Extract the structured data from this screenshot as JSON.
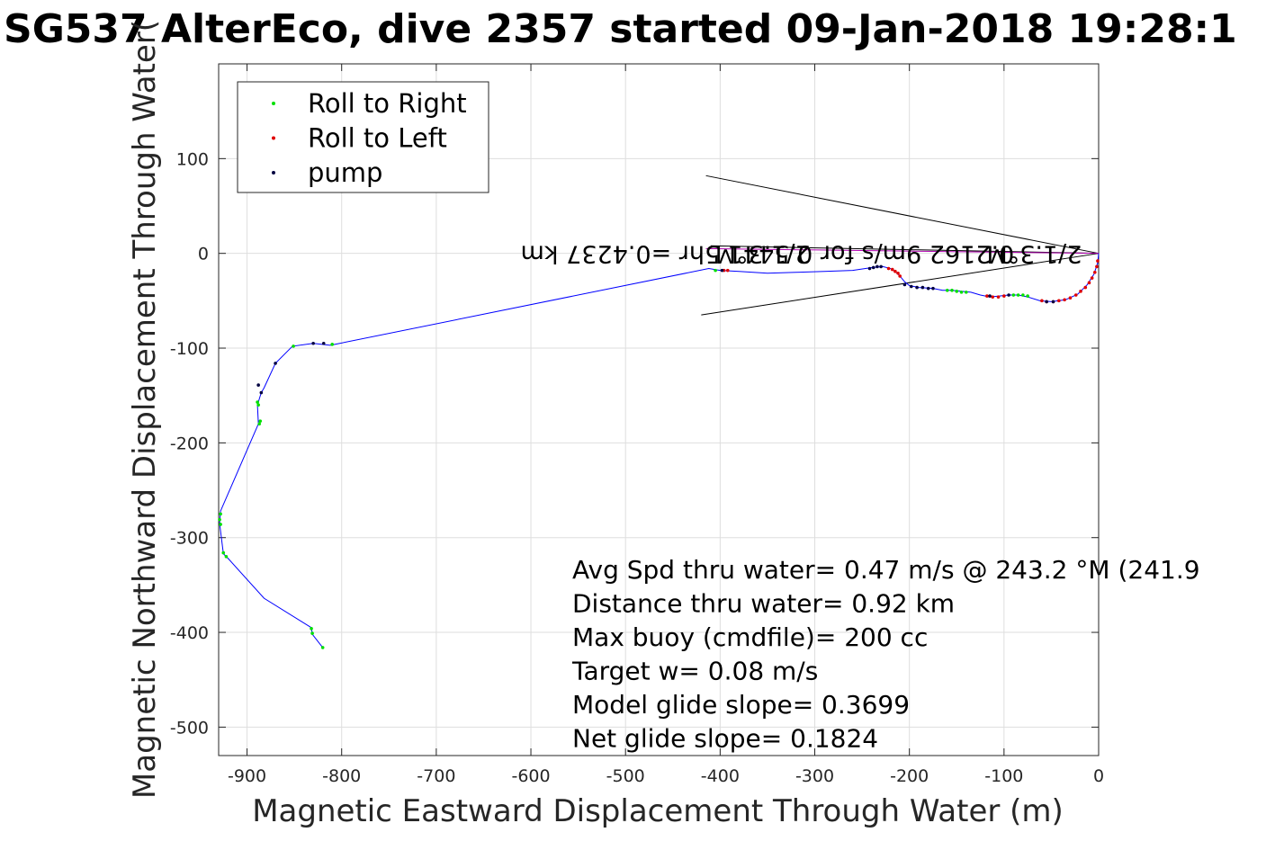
{
  "chart_data": {
    "type": "scatter",
    "title": "SG537 AlterEco, dive 2357 started 09-Jan-2018 19:28:1",
    "xlabel": "Magnetic Eastward Displacement Through Water (m)",
    "ylabel": "Magnetic Northward Displacement Through Water(",
    "xlim": [
      -930,
      0
    ],
    "ylim": [
      -530,
      200
    ],
    "xticks": [
      -900,
      -800,
      -700,
      -600,
      -500,
      -400,
      -300,
      -200,
      -100,
      0
    ],
    "yticks": [
      -500,
      -400,
      -300,
      -200,
      -100,
      0,
      100
    ],
    "grid": true,
    "legend": {
      "placement": "top-left",
      "entries": [
        {
          "label": "Roll to Right",
          "color": "#00e000"
        },
        {
          "label": "Roll to Left",
          "color": "#e00000"
        },
        {
          "label": "pump",
          "color": "#000040"
        }
      ]
    },
    "track": {
      "color": "#0000ff",
      "points": [
        [
          0,
          0
        ],
        [
          -1,
          -10
        ],
        [
          -5,
          -22
        ],
        [
          -12,
          -33
        ],
        [
          -22,
          -43
        ],
        [
          -35,
          -49
        ],
        [
          -50,
          -51
        ],
        [
          -62,
          -50
        ],
        [
          -75,
          -46
        ],
        [
          -85,
          -44
        ],
        [
          -95,
          -44
        ],
        [
          -105,
          -45
        ],
        [
          -115,
          -46
        ],
        [
          -125,
          -44
        ],
        [
          -135,
          -41
        ],
        [
          -145,
          -40
        ],
        [
          -155,
          -39
        ],
        [
          -165,
          -39
        ],
        [
          -175,
          -37
        ],
        [
          -190,
          -36
        ],
        [
          -200,
          -34
        ],
        [
          -205,
          -30
        ],
        [
          -210,
          -24
        ],
        [
          -215,
          -19
        ],
        [
          -220,
          -16
        ],
        [
          -228,
          -14
        ],
        [
          -240,
          -15
        ],
        [
          -260,
          -18
        ],
        [
          -290,
          -19
        ],
        [
          -320,
          -20
        ],
        [
          -350,
          -21
        ],
        [
          -380,
          -19
        ],
        [
          -400,
          -18
        ],
        [
          -412,
          -16
        ],
        [
          -812,
          -97
        ],
        [
          -830,
          -95
        ],
        [
          -852,
          -98
        ],
        [
          -870,
          -116
        ],
        [
          -882,
          -142
        ],
        [
          -885,
          -147
        ],
        [
          -889,
          -160
        ],
        [
          -888,
          -180
        ],
        [
          -928,
          -272
        ],
        [
          -929,
          -285
        ],
        [
          -925,
          -317
        ],
        [
          -920,
          -322
        ],
        [
          -882,
          -364
        ],
        [
          -832,
          -395
        ],
        [
          -831,
          -402
        ],
        [
          -820,
          -416
        ]
      ]
    },
    "series": [
      {
        "name": "Roll to Right",
        "color": "#00e000",
        "points": [
          [
            -160,
            -39
          ],
          [
            -155,
            -39
          ],
          [
            -150,
            -40
          ],
          [
            -145,
            -41
          ],
          [
            -140,
            -41
          ],
          [
            -90,
            -44
          ],
          [
            -85,
            -44
          ],
          [
            -80,
            -44
          ],
          [
            -75,
            -45
          ],
          [
            -888,
            -160
          ],
          [
            -889,
            -157
          ],
          [
            -886,
            -177
          ],
          [
            -887,
            -180
          ],
          [
            -928,
            -275
          ],
          [
            -929,
            -281
          ],
          [
            -928,
            -286
          ],
          [
            -925,
            -316
          ],
          [
            -922,
            -320
          ],
          [
            -832,
            -396
          ],
          [
            -831,
            -401
          ],
          [
            -820,
            -416
          ],
          [
            -851,
            -98
          ],
          [
            -810,
            -96
          ],
          [
            -405,
            -18
          ]
        ]
      },
      {
        "name": "Roll to Left",
        "color": "#e00000",
        "points": [
          [
            -1,
            -8
          ],
          [
            -2,
            -14
          ],
          [
            -4,
            -20
          ],
          [
            -7,
            -26
          ],
          [
            -10,
            -31
          ],
          [
            -14,
            -36
          ],
          [
            -19,
            -40
          ],
          [
            -24,
            -44
          ],
          [
            -30,
            -47
          ],
          [
            -36,
            -49
          ],
          [
            -42,
            -50
          ],
          [
            -48,
            -51
          ],
          [
            -55,
            -51
          ],
          [
            -60,
            -50
          ],
          [
            -118,
            -45
          ],
          [
            -112,
            -46
          ],
          [
            -106,
            -46
          ],
          [
            -100,
            -45
          ],
          [
            -210,
            -24
          ],
          [
            -212,
            -21
          ],
          [
            -215,
            -19
          ],
          [
            -218,
            -17
          ],
          [
            -222,
            -16
          ],
          [
            -396,
            -18
          ],
          [
            -392,
            -18
          ]
        ]
      },
      {
        "name": "pump",
        "color": "#000040",
        "points": [
          [
            -230,
            -14
          ],
          [
            -234,
            -14
          ],
          [
            -238,
            -15
          ],
          [
            -242,
            -16
          ],
          [
            -205,
            -33
          ],
          [
            -198,
            -35
          ],
          [
            -192,
            -36
          ],
          [
            -186,
            -36
          ],
          [
            -180,
            -37
          ],
          [
            -175,
            -37
          ],
          [
            -115,
            -45
          ],
          [
            -95,
            -44
          ],
          [
            -55,
            -51
          ],
          [
            -48,
            -51
          ],
          [
            -885,
            -147
          ],
          [
            -888,
            -139
          ],
          [
            -870,
            -116
          ],
          [
            -830,
            -95
          ],
          [
            -819,
            -95
          ],
          [
            -398,
            -18
          ]
        ]
      }
    ],
    "guide_lines": [
      {
        "color": "#000000",
        "points": [
          [
            0,
            0
          ],
          [
            -415,
            82
          ]
        ]
      },
      {
        "color": "#000000",
        "points": [
          [
            0,
            0
          ],
          [
            -420,
            -65
          ]
        ]
      },
      {
        "color": "#000000",
        "points": [
          [
            0,
            0
          ],
          [
            -410,
            8
          ]
        ]
      },
      {
        "color": "#b000b0",
        "points": [
          [
            0,
            0
          ],
          [
            -415,
            5
          ]
        ]
      }
    ],
    "flipped_labels": [
      {
        "text": "2/1.3°M",
        "x": -68
      },
      {
        "text": "0.2162 9m/s for 0.5441 5hr =0.4237 km",
        "x": -350
      },
      {
        "text": "2/1.3°M",
        "x": -355
      }
    ],
    "stats": [
      "Avg Spd thru water=  0.47 m/s @ 243.2 °M (241.9",
      "Distance thru water=  0.92 km",
      "Max buoy (cmdfile)= 200 cc",
      "Target w= 0.08 m/s",
      "Model glide slope= 0.3699",
      "Net glide slope= 0.1824"
    ]
  }
}
